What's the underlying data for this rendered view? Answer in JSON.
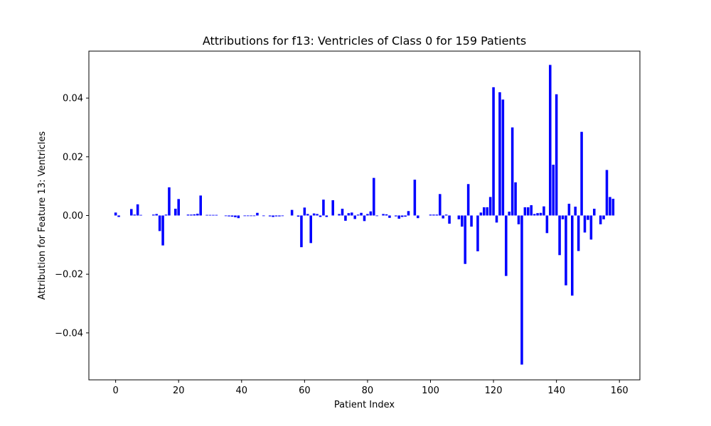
{
  "chart_data": {
    "type": "bar",
    "title": "Attributions for f13: Ventricles of Class 0 for 159 Patients",
    "xlabel": "Patient Index",
    "ylabel": "Attribution for Feature 13: Ventricles",
    "xlim": [
      -8.5,
      166.5
    ],
    "ylim": [
      -0.056,
      0.056
    ],
    "xticks": [
      0,
      20,
      40,
      60,
      80,
      100,
      120,
      140,
      160
    ],
    "xtick_labels": [
      "0",
      "20",
      "40",
      "60",
      "80",
      "100",
      "120",
      "140",
      "160"
    ],
    "yticks": [
      -0.04,
      -0.02,
      0.0,
      0.02,
      0.04
    ],
    "ytick_labels": [
      "−0.04",
      "−0.02",
      "0.00",
      "0.02",
      "0.04"
    ],
    "grid": false,
    "bar_color": "#0000ff",
    "x": [
      0,
      1,
      2,
      3,
      4,
      5,
      6,
      7,
      8,
      9,
      10,
      11,
      12,
      13,
      14,
      15,
      16,
      17,
      18,
      19,
      20,
      21,
      22,
      23,
      24,
      25,
      26,
      27,
      28,
      29,
      30,
      31,
      32,
      33,
      34,
      35,
      36,
      37,
      38,
      39,
      40,
      41,
      42,
      43,
      44,
      45,
      46,
      47,
      48,
      49,
      50,
      51,
      52,
      53,
      54,
      55,
      56,
      57,
      58,
      59,
      60,
      61,
      62,
      63,
      64,
      65,
      66,
      67,
      68,
      69,
      70,
      71,
      72,
      73,
      74,
      75,
      76,
      77,
      78,
      79,
      80,
      81,
      82,
      83,
      84,
      85,
      86,
      87,
      88,
      89,
      90,
      91,
      92,
      93,
      94,
      95,
      96,
      97,
      98,
      99,
      100,
      101,
      102,
      103,
      104,
      105,
      106,
      107,
      108,
      109,
      110,
      111,
      112,
      113,
      114,
      115,
      116,
      117,
      118,
      119,
      120,
      121,
      122,
      123,
      124,
      125,
      126,
      127,
      128,
      129,
      130,
      131,
      132,
      133,
      134,
      135,
      136,
      137,
      138,
      139,
      140,
      141,
      142,
      143,
      144,
      145,
      146,
      147,
      148,
      149,
      150,
      151,
      152,
      153,
      154,
      155,
      156,
      157,
      158
    ],
    "values": [
      0.001,
      -0.0005,
      0,
      0,
      0,
      0.0022,
      0.0003,
      0.0038,
      0.0002,
      0,
      0,
      0,
      0.0003,
      0.0005,
      -0.0053,
      -0.0102,
      0.0003,
      0.0096,
      0,
      0.0023,
      0.0056,
      0,
      0,
      0.0003,
      0.0003,
      0.0004,
      0.0006,
      0.0068,
      0,
      0.0002,
      0.0002,
      0.0002,
      0.0002,
      0,
      0,
      -0.0002,
      -0.0003,
      -0.0004,
      -0.0006,
      -0.0009,
      0,
      -0.0002,
      -0.0002,
      -0.0002,
      -0.0002,
      0.0009,
      0,
      -0.0002,
      0,
      -0.0003,
      -0.0005,
      -0.0003,
      -0.0003,
      -0.0002,
      0,
      0,
      0.0019,
      0,
      -0.0004,
      -0.0108,
      0.0027,
      0.0005,
      -0.0094,
      0.0007,
      0.0005,
      -0.0005,
      0.0054,
      -0.0005,
      0,
      0.0052,
      0,
      0.0005,
      0.0023,
      -0.0018,
      0.0008,
      0.001,
      -0.0012,
      0.0003,
      0.0009,
      -0.0019,
      0.0005,
      0.0014,
      0.0128,
      -0.0002,
      0,
      0.0005,
      0.0004,
      -0.0008,
      0,
      -0.0003,
      -0.0011,
      -0.0005,
      -0.0004,
      0.0015,
      0,
      0.0122,
      -0.0009,
      0,
      0,
      0,
      0.0003,
      0.0003,
      0.0003,
      0.0073,
      -0.001,
      0.0003,
      -0.0028,
      0,
      0,
      -0.0013,
      -0.0038,
      -0.0165,
      0.0107,
      -0.0038,
      0,
      -0.0122,
      0.001,
      0.0028,
      0.0028,
      0.0063,
      0.0437,
      -0.0024,
      0.042,
      0.0395,
      -0.0206,
      0.0013,
      0.03,
      0.0113,
      -0.003,
      -0.0508,
      0.0028,
      0.0028,
      0.0035,
      0.0005,
      0.0008,
      0.0009,
      0.0031,
      -0.006,
      0.0513,
      0.0173,
      0.0413,
      -0.0135,
      -0.0013,
      -0.0238,
      0.004,
      -0.0273,
      0.003,
      -0.0121,
      0.0285,
      -0.0058,
      -0.0015,
      -0.0082,
      0.0023,
      0,
      -0.003,
      -0.0013,
      0.0155,
      0.0063,
      0.0057
    ]
  }
}
